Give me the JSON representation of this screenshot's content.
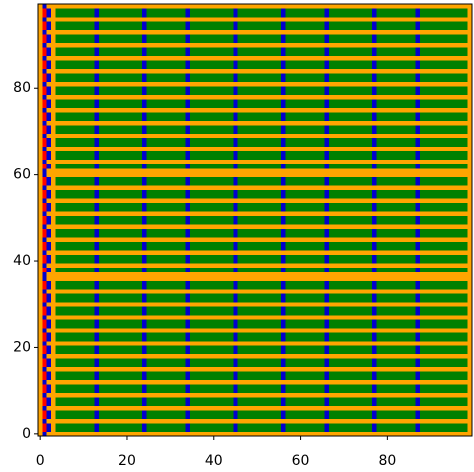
{
  "chart_data": {
    "type": "heatmap",
    "rows": [
      0,
      1,
      1,
      0,
      1,
      1,
      0,
      1,
      1,
      0,
      1,
      1,
      0,
      1,
      1,
      0,
      1,
      1,
      0,
      1,
      1,
      0,
      1,
      1,
      0,
      1,
      1,
      0,
      1,
      1,
      0,
      1,
      1,
      0,
      1,
      1,
      0,
      0,
      1,
      0,
      1,
      1,
      0,
      1,
      1,
      0,
      1,
      1,
      0,
      1,
      1,
      0,
      1,
      1,
      0,
      1,
      1,
      0,
      1,
      1,
      0,
      0,
      1,
      0,
      1,
      1,
      0,
      1,
      1,
      0,
      1,
      1,
      0,
      1,
      1,
      0,
      1,
      1,
      0,
      1,
      1,
      0,
      1,
      1,
      0,
      1,
      1,
      0,
      1,
      1,
      0,
      1,
      1,
      0,
      1,
      1,
      0,
      1,
      1,
      0
    ],
    "columns": [
      0,
      3,
      2,
      0,
      1,
      1,
      1,
      1,
      1,
      1,
      1,
      1,
      1,
      2,
      1,
      1,
      1,
      1,
      1,
      1,
      1,
      1,
      1,
      1,
      2,
      1,
      1,
      1,
      1,
      1,
      1,
      1,
      1,
      1,
      2,
      1,
      1,
      1,
      1,
      1,
      1,
      1,
      1,
      1,
      1,
      2,
      1,
      1,
      1,
      1,
      1,
      1,
      1,
      1,
      1,
      1,
      2,
      1,
      1,
      1,
      1,
      1,
      1,
      1,
      1,
      1,
      2,
      1,
      1,
      1,
      1,
      1,
      1,
      1,
      1,
      1,
      1,
      2,
      1,
      1,
      1,
      1,
      1,
      1,
      1,
      1,
      1,
      2,
      1,
      1,
      1,
      1,
      1,
      1,
      1,
      1,
      1,
      1,
      1,
      0
    ],
    "cell_colors": [
      [
        "#ffa500",
        "#ffa500",
        "#ffa500",
        "#0000cd"
      ],
      [
        "#ffa500",
        "#008000",
        "#0000cd",
        "#ff0000"
      ]
    ],
    "xlim": [
      -0.5,
      99.5
    ],
    "ylim": [
      -0.5,
      99.5
    ],
    "xticks": [
      0,
      20,
      40,
      60,
      80
    ],
    "yticks": [
      0,
      20,
      40,
      60,
      80
    ]
  }
}
